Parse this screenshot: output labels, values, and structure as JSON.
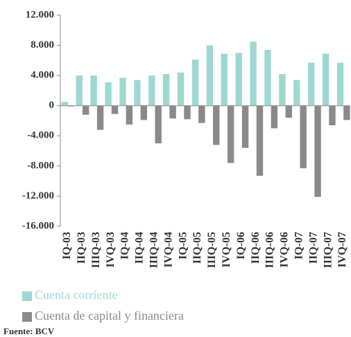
{
  "chart_data": {
    "type": "bar",
    "categories": [
      "IQ-03",
      "IIQ-03",
      "IIIQ-03",
      "IVQ-03",
      "IQ-04",
      "IIQ-04",
      "IIIQ-04",
      "IVQ-04",
      "IQ-05",
      "IIQ-05",
      "IIIQ-05",
      "IVQ-05",
      "IQ-06",
      "IIQ-06",
      "IIIQ-06",
      "IVQ-06",
      "IQ-07",
      "IIQ-07",
      "IIIQ-07",
      "IVQ-07"
    ],
    "series": [
      {
        "name": "Cuenta corriente",
        "color": "#9fd8d3",
        "values": [
          500,
          4000,
          4000,
          3100,
          3700,
          3400,
          4000,
          4200,
          4400,
          6100,
          8000,
          6900,
          7000,
          8500,
          7400,
          4200,
          3400,
          5700,
          6900,
          5700
        ]
      },
      {
        "name": "Cuenta de capital y financiera",
        "color": "#8a8a8c",
        "values": [
          -100,
          -1200,
          -3200,
          -1100,
          -2500,
          -1900,
          -5000,
          -1700,
          -1800,
          -2300,
          -5200,
          -7600,
          -5600,
          -9300,
          -3000,
          -1600,
          -8300,
          -12100,
          -2600,
          -1900
        ]
      }
    ],
    "ylim": [
      -16000,
      12000
    ],
    "yticks": [
      {
        "value": -16000,
        "label": "-16.000"
      },
      {
        "value": -12000,
        "label": "-12.000"
      },
      {
        "value": -8000,
        "label": "-8.000"
      },
      {
        "value": -4000,
        "label": "-4.000"
      },
      0,
      {
        "value": 4000,
        "label": "4.000"
      },
      {
        "value": 8000,
        "label": "8.000"
      },
      {
        "value": 12000,
        "label": "12.000"
      }
    ],
    "source": "Fuente: BCV"
  }
}
